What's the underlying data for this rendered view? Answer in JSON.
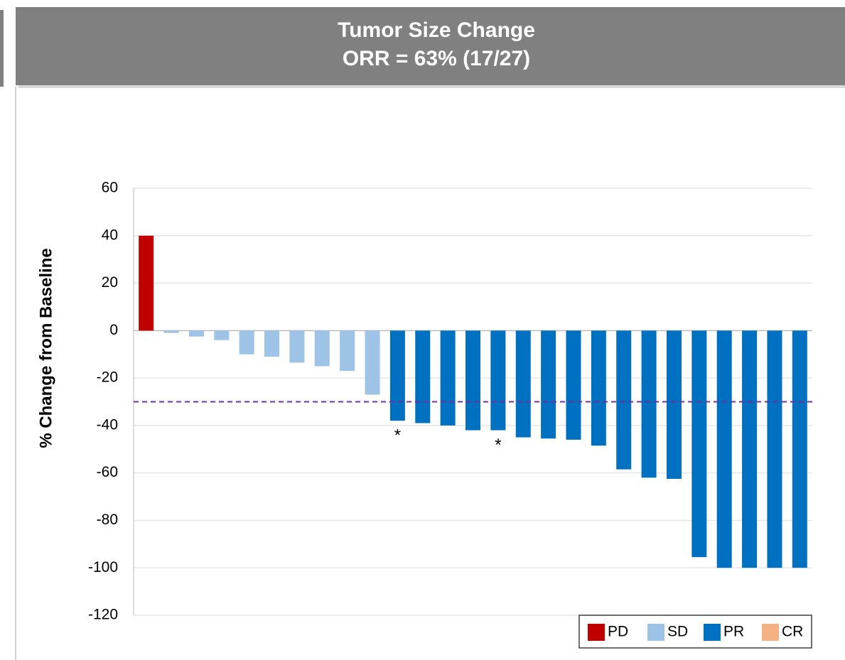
{
  "chart_data": {
    "type": "bar",
    "title": "Tumor Size Change",
    "subtitle": "ORR = 63% (17/27)",
    "y_label": "% Change from Baseline",
    "ylim": [
      -120,
      60
    ],
    "yticks": [
      -120,
      -100,
      -80,
      -60,
      -40,
      -20,
      0,
      20,
      40,
      60
    ],
    "grid": true,
    "legend": "bottom-right",
    "reference_line": {
      "value": -30,
      "color": "#7030a0"
    },
    "series": [
      {
        "name": "PD",
        "color": "#c00000",
        "values": [
          40,
          null,
          null,
          null,
          null,
          null,
          null,
          null,
          null,
          null,
          null,
          null,
          null,
          null,
          null,
          null,
          null,
          null,
          null,
          null,
          null,
          null,
          null,
          null,
          null,
          null,
          null
        ]
      },
      {
        "name": "SD",
        "color": "#9dc3e6",
        "values": [
          null,
          -1,
          -2.5,
          -4,
          -10,
          -11,
          -13.5,
          -15,
          -17,
          -27,
          null,
          null,
          null,
          null,
          null,
          null,
          null,
          null,
          null,
          null,
          null,
          null,
          null,
          null,
          null,
          null,
          null
        ]
      },
      {
        "name": "PR",
        "color": "#0070c0",
        "values": [
          null,
          null,
          null,
          null,
          null,
          null,
          null,
          null,
          null,
          null,
          -38,
          -39,
          -40,
          -42,
          -42,
          -45,
          -45.5,
          -46,
          -48.5,
          -58.5,
          -62,
          -62.5,
          -95.5,
          -100,
          -100,
          -100,
          -100
        ]
      },
      {
        "name": "CR",
        "color": "#f4b183",
        "values": [
          null,
          null,
          null,
          null,
          null,
          null,
          null,
          null,
          null,
          null,
          null,
          null,
          null,
          null,
          null,
          null,
          null,
          null,
          null,
          null,
          null,
          null,
          null,
          null,
          null,
          null,
          null
        ]
      }
    ],
    "annotations": [
      {
        "text": "*",
        "index": 10
      },
      {
        "text": "*",
        "index": 14
      }
    ]
  }
}
